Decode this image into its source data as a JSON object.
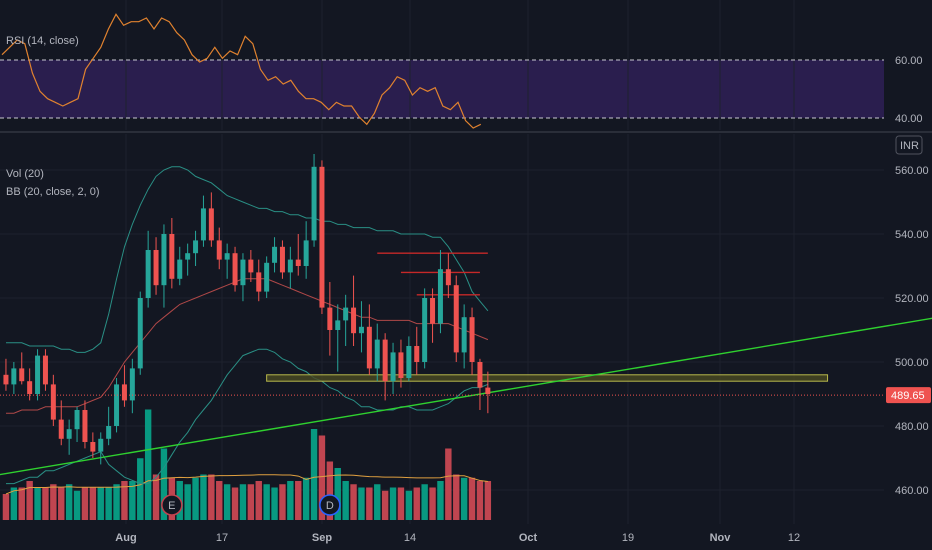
{
  "colors": {
    "background": "#131722",
    "grid": "#1e222d",
    "up": "#26a69a",
    "down": "#ef5350",
    "vol_up": "#089981",
    "vol_down": "#c04550",
    "bb_basis": "#b04848",
    "bb_band": "#2a8f85",
    "rsi_line": "#e0822f",
    "rsi_fill": "#2a1e4e",
    "trend_line": "#2fd12f",
    "support_zone": "#4a4a22",
    "price_line": "#ef5350",
    "resistance": "#c62828"
  },
  "icons": [
    "earnings-icon",
    "dividend-icon"
  ],
  "chart_data": [
    {
      "type": "line",
      "title": "RSI (14, close)",
      "ylim": [
        38,
        68
      ],
      "levels": [
        {
          "value": 60,
          "label": "60.00"
        },
        {
          "value": 40,
          "label": "40.00"
        }
      ],
      "yticks": [
        "60.00",
        "40.00"
      ],
      "values": [
        58,
        60,
        62,
        61,
        53,
        48,
        46,
        45,
        44,
        45,
        46,
        54,
        57,
        60,
        65,
        69,
        66,
        67,
        67,
        68,
        65,
        68,
        67,
        64,
        62,
        58,
        56,
        57,
        60,
        57,
        59,
        58,
        63,
        61,
        54,
        51,
        52,
        50,
        51,
        48,
        46,
        46,
        45,
        43,
        45,
        44,
        44,
        41,
        39,
        42,
        47,
        49,
        52,
        51,
        47,
        49,
        48,
        49,
        44,
        43,
        45,
        40,
        38,
        39
      ]
    },
    {
      "type": "candlestick",
      "title": "Vol (20)",
      "subtitle": "BB (20, close, 2, 0)",
      "currency": "INR",
      "ylim": [
        450,
        570
      ],
      "yticks": [
        "560.00",
        "540.00",
        "520.00",
        "500.00",
        "480.00",
        "460.00"
      ],
      "last_price": "489.65",
      "xticks": [
        "Aug",
        "17",
        "Sep",
        "14",
        "Oct",
        "19",
        "Nov",
        "12"
      ],
      "ohlc": [
        [
          496,
          501,
          491,
          493
        ],
        [
          493,
          500,
          490,
          498
        ],
        [
          498,
          503,
          493,
          494
        ],
        [
          494,
          498,
          488,
          490
        ],
        [
          490,
          504,
          488,
          502
        ],
        [
          502,
          504,
          491,
          493
        ],
        [
          493,
          496,
          480,
          482
        ],
        [
          482,
          488,
          474,
          476
        ],
        [
          476,
          482,
          471,
          479
        ],
        [
          479,
          486,
          475,
          485
        ],
        [
          485,
          488,
          473,
          475
        ],
        [
          475,
          478,
          470,
          472
        ],
        [
          472,
          478,
          468,
          476
        ],
        [
          476,
          486,
          474,
          480
        ],
        [
          480,
          495,
          478,
          493
        ],
        [
          493,
          499,
          486,
          488
        ],
        [
          488,
          501,
          484,
          498
        ],
        [
          498,
          522,
          496,
          520
        ],
        [
          520,
          541,
          517,
          535
        ],
        [
          535,
          539,
          521,
          524
        ],
        [
          524,
          543,
          517,
          540
        ],
        [
          540,
          545,
          523,
          526
        ],
        [
          526,
          536,
          524,
          532
        ],
        [
          532,
          537,
          527,
          534
        ],
        [
          534,
          541,
          530,
          538
        ],
        [
          538,
          552,
          536,
          548
        ],
        [
          548,
          553,
          536,
          538
        ],
        [
          538,
          542,
          529,
          532
        ],
        [
          532,
          537,
          526,
          534
        ],
        [
          534,
          536,
          522,
          524
        ],
        [
          524,
          534,
          519,
          532
        ],
        [
          532,
          535,
          525,
          528
        ],
        [
          528,
          532,
          519,
          522
        ],
        [
          522,
          533,
          520,
          531
        ],
        [
          531,
          539,
          528,
          536
        ],
        [
          536,
          538,
          526,
          528
        ],
        [
          528,
          536,
          523,
          532
        ],
        [
          532,
          540,
          527,
          530
        ],
        [
          530,
          544,
          526,
          538
        ],
        [
          538,
          565,
          536,
          561
        ],
        [
          561,
          563,
          515,
          517
        ],
        [
          517,
          525,
          502,
          510
        ],
        [
          510,
          518,
          497,
          513
        ],
        [
          513,
          521,
          505,
          517
        ],
        [
          517,
          527,
          505,
          509
        ],
        [
          509,
          519,
          503,
          511
        ],
        [
          511,
          518,
          496,
          498
        ],
        [
          498,
          512,
          494,
          507
        ],
        [
          507,
          509,
          488,
          494
        ],
        [
          494,
          506,
          490,
          503
        ],
        [
          503,
          507,
          492,
          495
        ],
        [
          495,
          508,
          494,
          505
        ],
        [
          505,
          511,
          496,
          500
        ],
        [
          500,
          523,
          498,
          520
        ],
        [
          520,
          523,
          506,
          512
        ],
        [
          512,
          535,
          509,
          529
        ],
        [
          529,
          534,
          520,
          524
        ],
        [
          524,
          527,
          500,
          503
        ],
        [
          503,
          518,
          498,
          514
        ],
        [
          514,
          517,
          496,
          500
        ],
        [
          500,
          501,
          485,
          492
        ],
        [
          492,
          497,
          484,
          490
        ]
      ],
      "volumes": [
        8,
        10,
        10,
        12,
        10,
        10,
        11,
        10,
        11,
        9,
        10,
        10,
        10,
        10,
        11,
        12,
        12,
        19,
        34,
        14,
        22,
        13,
        12,
        11,
        13,
        14,
        14,
        12,
        11,
        10,
        11,
        11,
        12,
        11,
        10,
        11,
        12,
        12,
        13,
        28,
        26,
        18,
        16,
        12,
        11,
        10,
        10,
        11,
        9,
        10,
        10,
        9,
        10,
        11,
        10,
        12,
        22,
        14,
        13,
        13,
        12,
        12
      ],
      "bb_basis": [
        484,
        484,
        485,
        485,
        485,
        486,
        486,
        486,
        486,
        486,
        487,
        488,
        489,
        492,
        496,
        500,
        503,
        506,
        509,
        512,
        514,
        516,
        518,
        519,
        520,
        521,
        522,
        523,
        524,
        525,
        526,
        526,
        526,
        526,
        525,
        524,
        523,
        522,
        521,
        520,
        519,
        518,
        517,
        516,
        515,
        514,
        514,
        513,
        513,
        513,
        513,
        513,
        512,
        512,
        512,
        512,
        512,
        511,
        510,
        509,
        508,
        507
      ],
      "bb_upper": [
        506,
        506,
        506,
        505,
        505,
        505,
        505,
        504,
        504,
        503,
        503,
        504,
        506,
        515,
        526,
        536,
        543,
        549,
        554,
        558,
        560,
        561,
        561,
        560,
        558,
        557,
        556,
        554,
        552,
        551,
        550,
        549,
        548,
        548,
        547,
        547,
        546,
        546,
        545,
        545,
        544,
        544,
        543,
        543,
        542,
        542,
        542,
        541,
        541,
        541,
        540,
        540,
        540,
        540,
        539,
        539,
        536,
        532,
        528,
        522,
        519,
        516
      ],
      "bb_lower": [
        462,
        462,
        463,
        464,
        464,
        466,
        466,
        467,
        468,
        469,
        470,
        471,
        472,
        468,
        466,
        464,
        463,
        462,
        462,
        464,
        467,
        471,
        475,
        478,
        482,
        485,
        488,
        492,
        496,
        499,
        502,
        503,
        504,
        504,
        503,
        501,
        500,
        498,
        497,
        495,
        494,
        492,
        491,
        489,
        488,
        486,
        486,
        485,
        485,
        485,
        486,
        486,
        485,
        485,
        485,
        486,
        487,
        489,
        491,
        492,
        492,
        493
      ],
      "trend_line": {
        "from": [
          -10,
          461
        ],
        "to": [
          135,
          521
        ]
      },
      "support_zone": {
        "from": 33,
        "to": 104,
        "low": 494,
        "high": 496
      },
      "resistance_lines": [
        {
          "from": 47,
          "to": 61,
          "value": 534
        },
        {
          "from": 50,
          "to": 60,
          "value": 528
        },
        {
          "from": 52,
          "to": 60,
          "value": 521
        }
      ],
      "events": [
        {
          "type": "earnings",
          "label": "E",
          "at": 21
        },
        {
          "type": "dividend",
          "label": "D",
          "at": 41
        },
        {
          "type": "earnings",
          "label": "E",
          "at": 146
        }
      ]
    }
  ]
}
